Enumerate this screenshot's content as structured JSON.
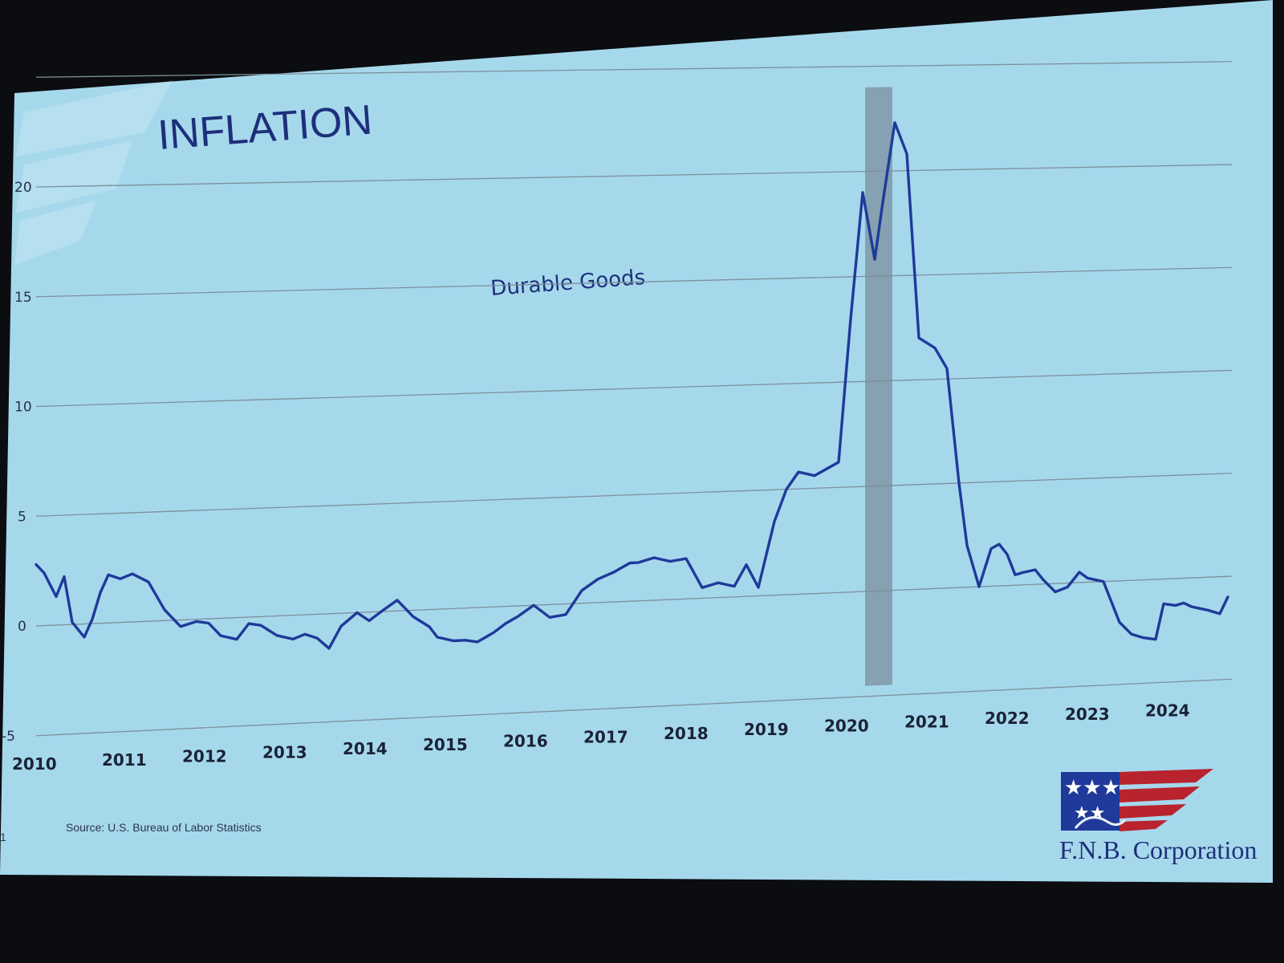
{
  "slide": {
    "title": "INFLATION",
    "source": "Source: U.S. Bureau of Labor Statistics",
    "brand": "F.N.B. Corporation",
    "page_mark": "1",
    "colors": {
      "background": "#a6d8ec",
      "line": "#1f3a9a",
      "title": "#1d2f7a",
      "recession_band": "#7f98a8",
      "frame": "#0b0d10"
    },
    "logo_icon": "flag-handshake-logo"
  },
  "chart_data": {
    "type": "line",
    "title": "INFLATION",
    "xlabel": "",
    "ylabel": "",
    "ylim": [
      -5,
      22
    ],
    "xlim": [
      2010,
      2024.9
    ],
    "y_ticks": [
      "-5",
      "0",
      "5",
      "10",
      "15",
      "20"
    ],
    "x_ticks": [
      "2010",
      "2011",
      "2012",
      "2013",
      "2014",
      "2015",
      "2016",
      "2017",
      "2018",
      "2019",
      "2020",
      "2021",
      "2022",
      "2023",
      "2024"
    ],
    "grid": true,
    "shaded_periods": [
      [
        2020.33,
        2020.67
      ]
    ],
    "series": [
      {
        "name": "Durable Goods",
        "x": [
          2010.0,
          2010.1,
          2010.25,
          2010.35,
          2010.45,
          2010.6,
          2010.7,
          2010.8,
          2010.9,
          2011.05,
          2011.2,
          2011.4,
          2011.6,
          2011.8,
          2012.0,
          2012.15,
          2012.3,
          2012.5,
          2012.65,
          2012.8,
          2013.0,
          2013.2,
          2013.35,
          2013.5,
          2013.65,
          2013.8,
          2014.0,
          2014.15,
          2014.3,
          2014.5,
          2014.7,
          2014.9,
          2015.0,
          2015.2,
          2015.35,
          2015.5,
          2015.7,
          2015.85,
          2016.0,
          2016.2,
          2016.4,
          2016.6,
          2016.8,
          2017.0,
          2017.2,
          2017.4,
          2017.5,
          2017.7,
          2017.9,
          2018.1,
          2018.3,
          2018.5,
          2018.7,
          2018.85,
          2019.0,
          2019.2,
          2019.35,
          2019.5,
          2019.7,
          2019.9,
          2020.0,
          2020.15,
          2020.3,
          2020.45,
          2020.55,
          2020.7,
          2020.85,
          2021.0,
          2021.2,
          2021.35,
          2021.5,
          2021.6,
          2021.75,
          2021.9,
          2022.0,
          2022.1,
          2022.2,
          2022.3,
          2022.45,
          2022.55,
          2022.7,
          2022.85,
          2023.0,
          2023.1,
          2023.3,
          2023.4,
          2023.5,
          2023.65,
          2023.8,
          2023.95,
          2024.05,
          2024.2,
          2024.3,
          2024.4,
          2024.5,
          2024.6,
          2024.75,
          2024.85
        ],
        "values": [
          2.8,
          2.4,
          1.3,
          2.2,
          0.1,
          -0.6,
          0.2,
          1.4,
          2.2,
          2.0,
          2.2,
          1.8,
          0.5,
          -0.3,
          -0.1,
          -0.2,
          -0.8,
          -1.0,
          -0.3,
          -0.4,
          -0.9,
          -1.1,
          -0.9,
          -1.1,
          -1.6,
          -0.6,
          0.0,
          -0.4,
          0.0,
          0.5,
          -0.3,
          -0.8,
          -1.3,
          -1.5,
          -1.5,
          -1.6,
          -1.2,
          -0.8,
          -0.5,
          0.0,
          -0.6,
          -0.5,
          0.6,
          1.1,
          1.4,
          1.8,
          1.8,
          2.0,
          1.8,
          1.9,
          0.5,
          0.7,
          0.5,
          1.5,
          0.4,
          3.5,
          5.0,
          5.8,
          5.6,
          6.0,
          6.2,
          13.0,
          19.0,
          15.8,
          18.5,
          22.3,
          20.8,
          12.0,
          11.5,
          10.5,
          5.0,
          2.0,
          0.0,
          1.8,
          2.0,
          1.5,
          0.5,
          0.6,
          0.7,
          0.2,
          -0.4,
          -0.2,
          0.5,
          0.2,
          0.0,
          -1.0,
          -2.0,
          -2.6,
          -2.8,
          -2.9,
          -1.2,
          -1.3,
          -1.2,
          -1.4,
          -1.5,
          -1.6,
          -1.8,
          -1.0
        ]
      }
    ]
  }
}
